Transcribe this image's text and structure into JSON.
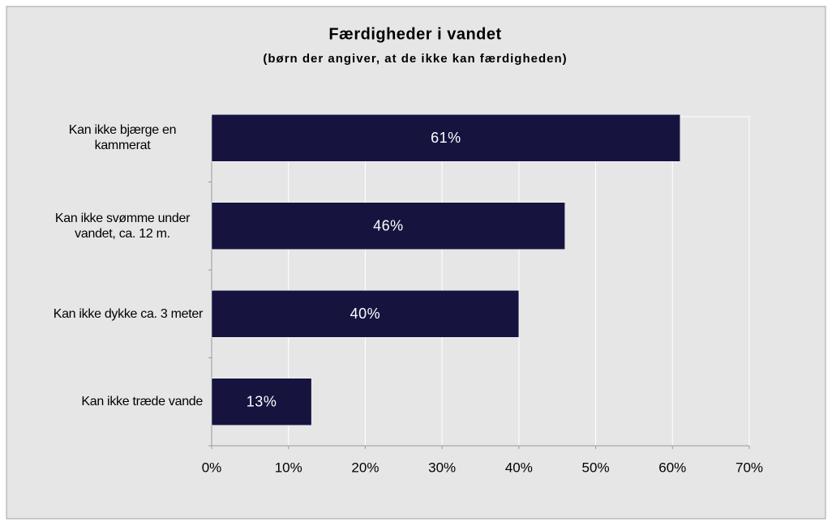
{
  "chart_data": {
    "type": "bar",
    "orientation": "horizontal",
    "title": "Færdigheder i vandet",
    "subtitle": "(børn der angiver, at de ikke kan færdigheden)",
    "categories": [
      "Kan ikke bjærge en kammerat",
      "Kan ikke svømme under vandet, ca. 12 m.",
      "Kan ikke dykke ca. 3 meter",
      "Kan ikke træde vande"
    ],
    "values": [
      61,
      46,
      40,
      13
    ],
    "value_labels": [
      "61%",
      "46%",
      "40%",
      "13%"
    ],
    "color": "#16143f",
    "xlim": [
      0,
      70
    ],
    "xticks": [
      {
        "value": 0,
        "label": "0%"
      },
      {
        "value": 10,
        "label": "10%"
      },
      {
        "value": 20,
        "label": "20%"
      },
      {
        "value": 30,
        "label": "30%"
      },
      {
        "value": 40,
        "label": "40%"
      },
      {
        "value": 50,
        "label": "50%"
      },
      {
        "value": 60,
        "label": "60%"
      },
      {
        "value": 70,
        "label": "70%"
      }
    ],
    "grid": true
  }
}
